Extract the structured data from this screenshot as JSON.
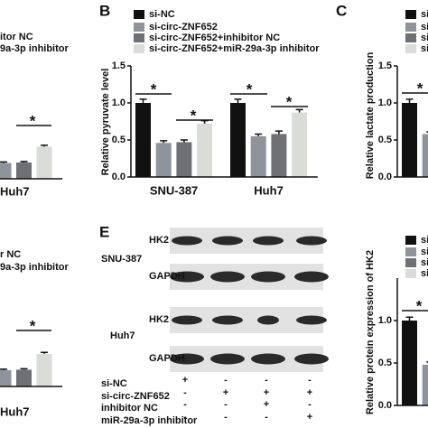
{
  "chart_data": [
    {
      "type": "bar",
      "panel_label": "B",
      "y_label": "Relative pyruvate level",
      "categories": [
        "SNU-387",
        "Huh7"
      ],
      "series": [
        {
          "name": "si-NC",
          "color": "#111111",
          "values": [
            1.0,
            1.0
          ],
          "errors": [
            0.05,
            0.05
          ]
        },
        {
          "name": "si-circ-ZNF652",
          "color": "#8e939c",
          "values": [
            0.46,
            0.55
          ],
          "errors": [
            0.03,
            0.03
          ]
        },
        {
          "name": "si-circ-ZNF652+inhibitor NC",
          "color": "#6e7076",
          "values": [
            0.47,
            0.58
          ],
          "errors": [
            0.03,
            0.04
          ]
        },
        {
          "name": "si-circ-ZNF652+miR-29a-3p inhibitor",
          "color": "#dadcd8",
          "values": [
            0.72,
            0.87
          ],
          "errors": [
            0.04,
            0.04
          ]
        }
      ],
      "ylim": [
        0,
        1.5
      ],
      "yticks": [
        {
          "value": 0,
          "label": "0.0"
        },
        0.5,
        {
          "value": 1,
          "label": "1.0"
        },
        1.5
      ],
      "annotations": [
        "*",
        "*",
        "*",
        "*"
      ]
    },
    {
      "type": "bar",
      "panel_label": "C",
      "y_label": "Relative lactate production",
      "categories": [
        "SN"
      ],
      "series": [
        {
          "name": "si-",
          "color": "#111111",
          "values": [
            1.0
          ],
          "errors": [
            0.05
          ]
        },
        {
          "name": "si-",
          "color": "#8e939c",
          "values": [
            0.58
          ],
          "errors": [
            0.03
          ]
        },
        {
          "name": "si-",
          "color": "#6e7076",
          "values": [
            null
          ],
          "errors": [
            null
          ]
        },
        {
          "name": "si-",
          "color": "#dadcd8",
          "values": [
            null
          ],
          "errors": [
            null
          ]
        }
      ],
      "ylim": [
        0,
        1.5
      ],
      "yticks": [
        {
          "value": 0,
          "label": "0.0"
        },
        0.5,
        {
          "value": 1,
          "label": "1.0"
        },
        1.5
      ],
      "annotations": [
        "*"
      ]
    },
    {
      "type": "bar",
      "y_label": "Relative protein expression of HK2",
      "categories": [
        "SN"
      ],
      "series": [
        {
          "name": "si-",
          "color": "#111111",
          "values": [
            1.0
          ],
          "errors": [
            0.04
          ]
        },
        {
          "name": "si-",
          "color": "#8e939c",
          "values": [
            0.48
          ],
          "errors": [
            0.03
          ]
        },
        {
          "name": "si-",
          "color": "#6e7076",
          "values": [
            null
          ],
          "errors": [
            null
          ]
        },
        {
          "name": "si-",
          "color": "#dadcd8",
          "values": [
            null
          ],
          "errors": [
            null
          ]
        }
      ],
      "ylim": [
        0,
        1.5
      ],
      "yticks": [
        {
          "value": 0,
          "label": "0.0"
        },
        0.5,
        {
          "value": 1,
          "label": "1.0"
        }
      ],
      "annotations": [
        "*"
      ]
    },
    {
      "type": "bar",
      "legend": [
        "itor NC",
        "9a-3p inhibitor"
      ],
      "categories": [
        "Huh7"
      ],
      "series": [
        {
          "color": "#8e939c",
          "values": [
            0.32
          ],
          "errors": [
            0.02
          ]
        },
        {
          "color": "#6e7076",
          "values": [
            0.33
          ],
          "errors": [
            0.02
          ]
        },
        {
          "color": "#dadcd8",
          "values": [
            0.65
          ],
          "errors": [
            0.03
          ]
        }
      ],
      "ylim": [
        0,
        1.5
      ],
      "annotations": [
        "*"
      ]
    },
    {
      "type": "bar",
      "legend": [
        "r NC",
        "9a-3p inhibitor"
      ],
      "categories": [
        "Huh7"
      ],
      "series": [
        {
          "color": "#8e939c",
          "values": [
            0.33
          ],
          "errors": [
            0.02
          ]
        },
        {
          "color": "#6e7076",
          "values": [
            0.34
          ],
          "errors": [
            0.02
          ]
        },
        {
          "color": "#dadcd8",
          "values": [
            0.66
          ],
          "errors": [
            0.03
          ]
        }
      ],
      "ylim": [
        0,
        1.5
      ],
      "annotations": [
        "*"
      ]
    }
  ],
  "blot": {
    "panel_label": "E",
    "rows": [
      {
        "cell_line": "SNU-387",
        "bands": [
          "HK2",
          "GAPDH"
        ]
      },
      {
        "cell_line": "Huh7",
        "bands": [
          "HK2",
          "GAPDH"
        ]
      }
    ],
    "conditions": [
      {
        "name": "si-NC",
        "marks": [
          "+",
          "-",
          "-",
          "-"
        ]
      },
      {
        "name": "si-circ-ZNF652",
        "marks": [
          "-",
          "+",
          "+",
          "+"
        ]
      },
      {
        "name": "inhibitor NC",
        "marks": [
          "-",
          "-",
          "+",
          "-"
        ]
      },
      {
        "name": "miR-29a-3p inhibitor",
        "marks": [
          "-",
          "-",
          "-",
          "+"
        ]
      }
    ]
  }
}
